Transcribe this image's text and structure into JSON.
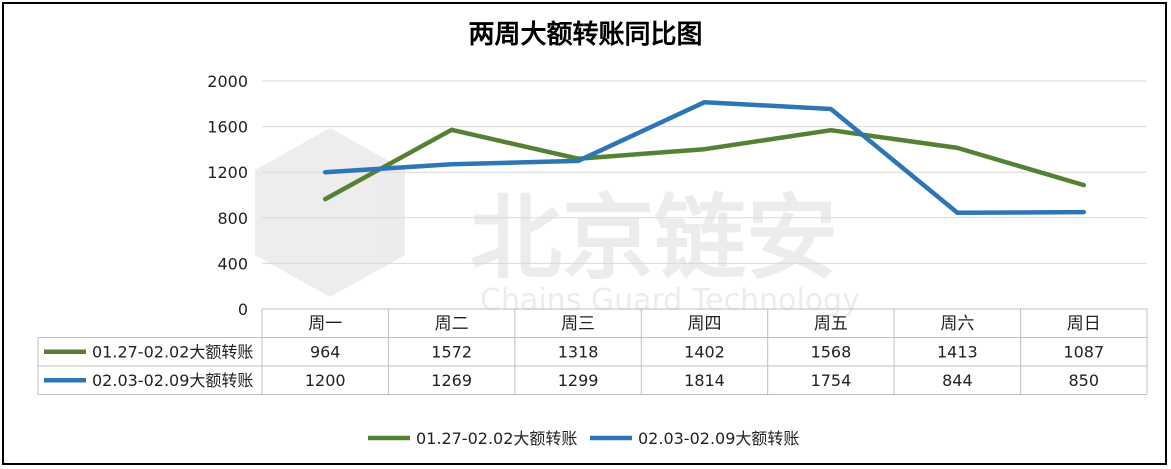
{
  "chart_data": {
    "type": "line",
    "title": "两周大额转账同比图",
    "categories": [
      "周一",
      "周二",
      "周三",
      "周四",
      "周五",
      "周六",
      "周日"
    ],
    "ylim": [
      0,
      2000
    ],
    "yticks": [
      0,
      400,
      800,
      1200,
      1600,
      2000
    ],
    "grid": true,
    "legend": "bottom",
    "series": [
      {
        "name": "01.27-02.02大额转账",
        "color": "#548235",
        "values": [
          964,
          1572,
          1318,
          1402,
          1568,
          1413,
          1087
        ]
      },
      {
        "name": "02.03-02.09大额转账",
        "color": "#2e75b6",
        "values": [
          1200,
          1269,
          1299,
          1814,
          1754,
          844,
          850
        ]
      }
    ]
  },
  "watermark": {
    "cn": "北京链安",
    "en": "Chains Guard Technology"
  }
}
